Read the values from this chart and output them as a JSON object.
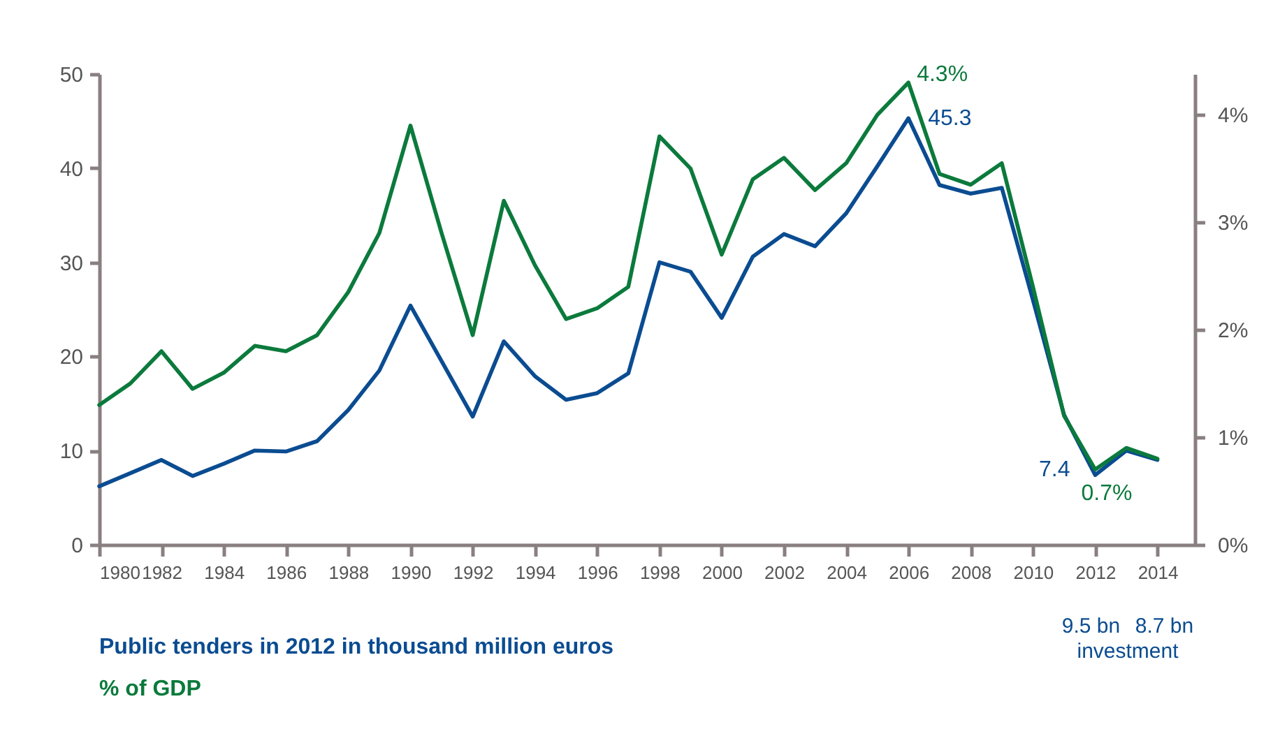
{
  "chart_data": {
    "type": "line",
    "x": [
      1980,
      1981,
      1982,
      1983,
      1984,
      1985,
      1986,
      1987,
      1988,
      1989,
      1990,
      1991,
      1992,
      1993,
      1994,
      1995,
      1996,
      1997,
      1998,
      1999,
      2000,
      2001,
      2002,
      2003,
      2004,
      2005,
      2006,
      2007,
      2008,
      2009,
      2010,
      2011,
      2012,
      2013,
      2014
    ],
    "xlim": [
      1980,
      2015.2
    ],
    "xticks": [
      1980,
      1982,
      1984,
      1986,
      1988,
      1990,
      1992,
      1994,
      1996,
      1998,
      2000,
      2002,
      2004,
      2006,
      2008,
      2010,
      2012,
      2014
    ],
    "ylim": [
      0,
      50
    ],
    "yticks": [
      0,
      10,
      20,
      30,
      40,
      50
    ],
    "y2lim": [
      0,
      4.38
    ],
    "y2ticks": [
      {
        "value": 0,
        "label": "0%"
      },
      {
        "value": 1,
        "label": "1%"
      },
      {
        "value": 2,
        "label": "2%"
      },
      {
        "value": 3,
        "label": "3%"
      },
      {
        "value": 4,
        "label": "4%"
      }
    ],
    "legend": "bottom left",
    "marker": "none",
    "line_style": "solid",
    "series": [
      {
        "name": "Public tenders in 2012 in thousand million euros",
        "color": "#0b4c91",
        "values": [
          6.2,
          7.6,
          9.0,
          7.3,
          8.6,
          10.0,
          9.9,
          11.0,
          14.3,
          18.5,
          25.4,
          19.5,
          13.6,
          21.6,
          17.9,
          15.4,
          16.1,
          18.2,
          30.0,
          29.0,
          24.1,
          30.6,
          33.0,
          31.7,
          35.2,
          40.2,
          45.3,
          38.2,
          37.3,
          37.9,
          26.0,
          13.8,
          7.4,
          10.0,
          9.0
        ],
        "value_labels": [
          null,
          null,
          null,
          null,
          null,
          null,
          null,
          null,
          null,
          null,
          null,
          null,
          null,
          null,
          null,
          null,
          null,
          null,
          null,
          null,
          null,
          null,
          null,
          null,
          null,
          null,
          "45.3",
          null,
          null,
          null,
          null,
          null,
          "7.4",
          null,
          null
        ]
      },
      {
        "name": "% of GDP",
        "color": "#0b7a3c",
        "axis": "y2",
        "values": [
          1.3,
          1.5,
          1.8,
          1.45,
          1.6,
          1.85,
          1.8,
          1.95,
          2.35,
          2.9,
          3.9,
          2.9,
          1.95,
          3.2,
          2.6,
          2.1,
          2.2,
          2.4,
          3.8,
          3.5,
          2.7,
          3.4,
          3.6,
          3.3,
          3.55,
          4.0,
          4.3,
          3.45,
          3.35,
          3.55,
          2.4,
          1.2,
          0.7,
          0.9,
          0.8
        ],
        "value_labels": [
          null,
          null,
          null,
          null,
          null,
          null,
          null,
          null,
          null,
          null,
          null,
          null,
          null,
          null,
          null,
          null,
          null,
          null,
          null,
          null,
          null,
          null,
          null,
          null,
          null,
          null,
          "4.3%",
          null,
          null,
          null,
          null,
          null,
          "0.7%",
          null,
          null
        ]
      }
    ],
    "annotations": [
      "9.5 bn",
      "8.7 bn",
      "investment"
    ]
  }
}
